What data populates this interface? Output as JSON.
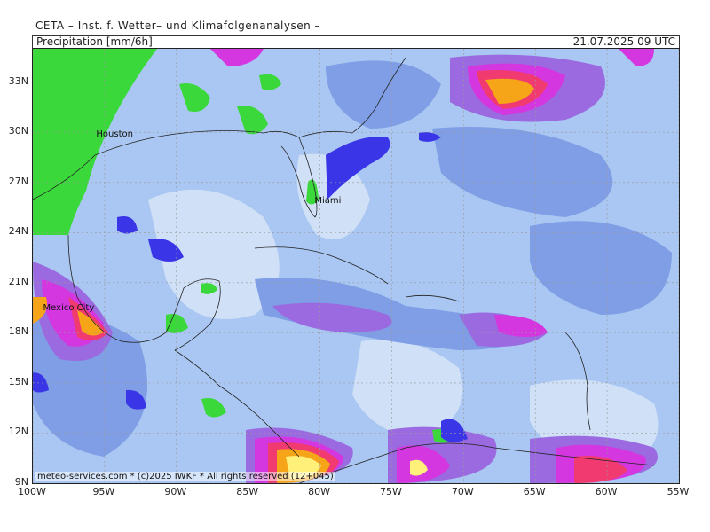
{
  "header": {
    "title": "CETA – Inst. f. Wetter– und Klimafolgenanalysen –",
    "parameter": "Precipitation [mm/6h]",
    "datetime": "21.07.2025 09 UTC"
  },
  "footer": "meteo-services.com * (c)2025 IWKF * All rights reserved (12+045)",
  "map": {
    "lat_range": [
      9,
      35
    ],
    "lon_range": [
      -100,
      -55
    ],
    "lat_ticks": [
      "33N",
      "30N",
      "27N",
      "24N",
      "21N",
      "18N",
      "15N",
      "12N",
      "9N"
    ],
    "lon_ticks": [
      "100W",
      "95W",
      "90W",
      "85W",
      "80W",
      "75W",
      "70W",
      "65W",
      "60W",
      "55W"
    ],
    "cities": [
      {
        "name": "Houston",
        "lat": 29.8,
        "lon": -95.4
      },
      {
        "name": "Miami",
        "lat": 25.8,
        "lon": -80.2
      },
      {
        "name": "Mexico City",
        "lat": 19.4,
        "lon": -99.1
      }
    ],
    "colors": {
      "low": "#cfe0f7",
      "light": "#a9c7f2",
      "moderate": "#7f9ee6",
      "heavy": "#9b6ae0",
      "very_heavy": "#d436e0",
      "intense": "#f03a70",
      "extreme": "#f6a418",
      "max": "#fff07a",
      "dry_land": "#3ad83a",
      "dark_blue": "#3a36e8"
    }
  }
}
